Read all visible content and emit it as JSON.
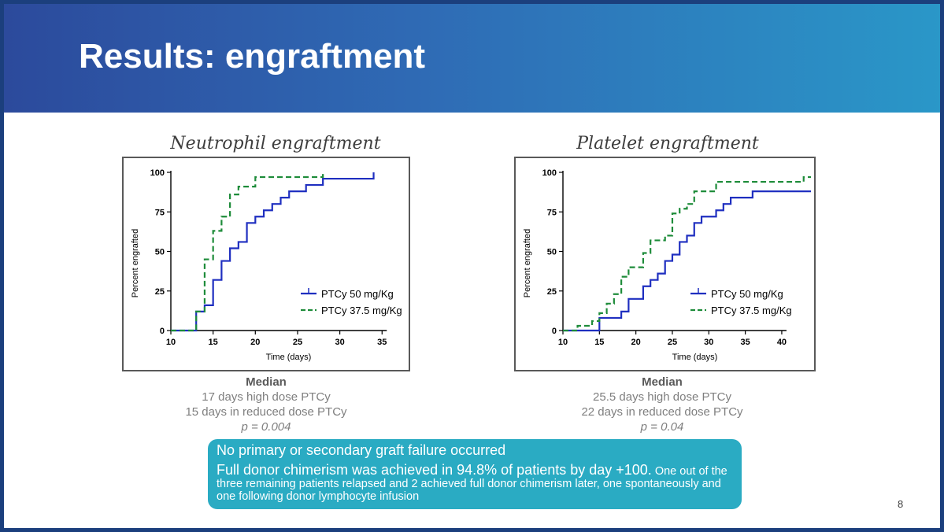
{
  "slide": {
    "title": "Results: engraftment",
    "page_number": "8",
    "colors": {
      "banner_start": "#2c4a9c",
      "banner_end": "#2a97c8",
      "note_bg": "#2aabc3",
      "series_high": "#1f2fc0",
      "series_low": "#1e8c3a"
    }
  },
  "charts": [
    {
      "heading": "Neutrophil engraftment",
      "median": {
        "label": "Median",
        "line1": "17 days high dose PTCy",
        "line2": "15 days in reduced dose PTCy",
        "p": "p = 0.004"
      }
    },
    {
      "heading": "Platelet engraftment",
      "median": {
        "label": "Median",
        "line1": "25.5 days high dose PTCy",
        "line2": "22 days in reduced dose PTCy",
        "p": "p = 0.04"
      }
    }
  ],
  "chart_data": [
    {
      "type": "line",
      "title": "Neutrophil engraftment",
      "xlabel": "Time (days)",
      "ylabel": "Percent engrafted",
      "xlim": [
        10,
        36
      ],
      "ylim": [
        0,
        100
      ],
      "xticks": [
        10,
        15,
        20,
        25,
        30,
        35
      ],
      "yticks": [
        0,
        25,
        50,
        75,
        100
      ],
      "series": [
        {
          "name": "PTCy 50 mg/Kg",
          "style": "solid",
          "color": "#1f2fc0",
          "x": [
            10,
            13,
            14,
            15,
            16,
            17,
            18,
            19,
            20,
            21,
            22,
            23,
            24,
            26,
            28,
            31,
            34
          ],
          "y": [
            0,
            12,
            16,
            32,
            44,
            52,
            56,
            68,
            72,
            76,
            80,
            84,
            88,
            92,
            96,
            96,
            100
          ]
        },
        {
          "name": "PTCy 37.5 mg/Kg",
          "style": "dashed",
          "color": "#1e8c3a",
          "x": [
            10,
            13,
            14,
            15,
            16,
            17,
            18,
            20,
            28
          ],
          "y": [
            0,
            12,
            45,
            63,
            72,
            86,
            91,
            97,
            100
          ]
        }
      ]
    },
    {
      "type": "line",
      "title": "Platelet engraftment",
      "xlabel": "Time (days)",
      "ylabel": "Percent engrafted",
      "xlim": [
        10,
        44
      ],
      "ylim": [
        0,
        100
      ],
      "xticks": [
        10,
        15,
        20,
        25,
        30,
        35,
        40
      ],
      "yticks": [
        0,
        25,
        50,
        75,
        100
      ],
      "series": [
        {
          "name": "PTCy 50 mg/Kg",
          "style": "solid",
          "color": "#1f2fc0",
          "x": [
            10,
            15,
            18,
            19,
            21,
            22,
            23,
            24,
            25,
            26,
            27,
            28,
            29,
            31,
            32,
            33,
            34,
            36,
            44
          ],
          "y": [
            0,
            8,
            12,
            20,
            28,
            32,
            36,
            44,
            48,
            56,
            60,
            68,
            72,
            76,
            80,
            84,
            84,
            88,
            88
          ]
        },
        {
          "name": "PTCy 37.5 mg/Kg",
          "style": "dashed",
          "color": "#1e8c3a",
          "x": [
            10,
            12,
            14,
            15,
            16,
            17,
            18,
            19,
            21,
            22,
            24,
            25,
            26,
            27,
            28,
            31,
            34,
            40,
            43,
            44
          ],
          "y": [
            0,
            3,
            6,
            11,
            17,
            23,
            34,
            40,
            49,
            57,
            60,
            74,
            77,
            80,
            88,
            94,
            94,
            94,
            97,
            97
          ]
        }
      ]
    }
  ],
  "note": {
    "line1": "No primary or secondary graft failure occurred",
    "line2_lead": "Full donor chimerism was achieved in 94.8% of patients by day +100.",
    "line2_rest": " One out of the three remaining patients relapsed and 2 achieved full donor chimerism later, one spontaneously and one following donor lymphocyte infusion"
  }
}
